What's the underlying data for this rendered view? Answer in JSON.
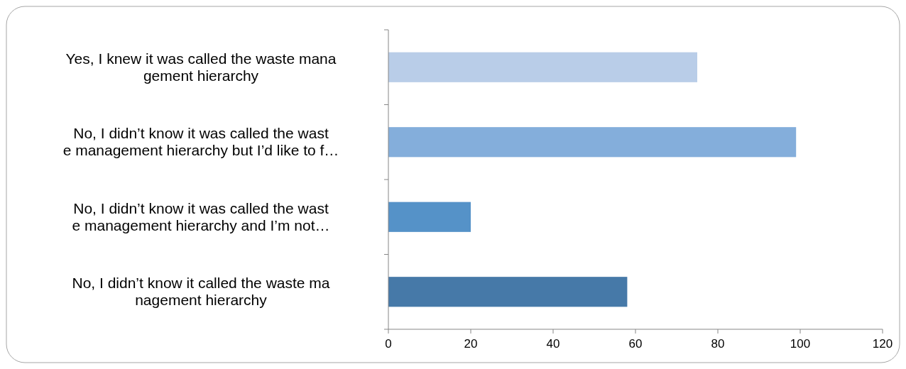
{
  "chart_data": {
    "type": "bar",
    "orientation": "horizontal",
    "categories": [
      "Yes, I knew it was called the waste mana\ngement hierarchy",
      "No, I didn’t know it was called the wast\ne management hierarchy but I’d like to f…",
      "No, I didn’t know it was called the wast\ne management hierarchy and I’m not…",
      "No, I didn’t know it called the waste ma\nnagement hierarchy"
    ],
    "values": [
      75,
      99,
      20,
      58
    ],
    "colors": [
      "#b9cde8",
      "#84aedb",
      "#5592c8",
      "#4679a8"
    ],
    "xlim": [
      0,
      120
    ],
    "xticks": [
      0,
      20,
      40,
      60,
      80,
      100,
      120
    ],
    "grid": false
  }
}
